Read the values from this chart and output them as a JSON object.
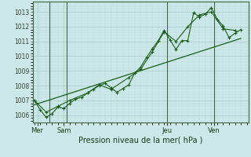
{
  "bg_color": "#cce8e8",
  "grid_major_color": "#aacccc",
  "grid_minor_color": "#bbdddd",
  "line_color": "#1a5e1a",
  "marker_color": "#1a5e1a",
  "title": "Pression niveau de la mer( hPa )",
  "ylim": [
    1005.5,
    1013.7
  ],
  "xlim": [
    -0.3,
    36.3
  ],
  "yticks": [
    1006,
    1007,
    1008,
    1009,
    1010,
    1011,
    1012,
    1013
  ],
  "day_labels": [
    "Mer",
    "Sam",
    "Jeu",
    "Ven"
  ],
  "day_positions": [
    0.5,
    5.0,
    22.5,
    30.5
  ],
  "vline_positions": [
    2.5,
    5.5,
    22.5,
    30.5
  ],
  "series1_x": [
    0,
    1,
    2,
    3,
    4,
    5,
    6,
    7,
    8,
    9,
    10,
    11,
    12,
    13,
    14,
    15,
    16,
    17,
    18,
    19,
    20,
    21,
    22,
    23,
    24,
    25,
    26,
    27,
    28,
    29,
    30,
    31,
    32,
    33,
    34,
    35
  ],
  "series1_y": [
    1007.0,
    1006.35,
    1005.85,
    1006.1,
    1006.55,
    1006.45,
    1006.8,
    1007.1,
    1007.2,
    1007.5,
    1007.75,
    1008.0,
    1008.15,
    1007.85,
    1007.55,
    1007.8,
    1008.05,
    1008.85,
    1009.25,
    1009.9,
    1010.5,
    1011.05,
    1011.75,
    1011.1,
    1010.45,
    1011.05,
    1011.05,
    1012.95,
    1012.65,
    1012.85,
    1013.3,
    1012.5,
    1012.05,
    1011.25,
    1011.55,
    1011.8
  ],
  "series2_x": [
    0,
    2,
    4,
    6,
    9,
    11,
    13,
    16,
    18,
    20,
    22,
    24,
    26,
    28,
    30,
    32,
    34
  ],
  "series2_y": [
    1007.0,
    1006.2,
    1006.6,
    1007.0,
    1007.5,
    1008.05,
    1007.75,
    1008.55,
    1009.1,
    1010.3,
    1011.65,
    1011.0,
    1012.0,
    1012.8,
    1013.0,
    1011.85,
    1011.75
  ],
  "trend_x": [
    0,
    35
  ],
  "trend_y": [
    1006.7,
    1011.2
  ]
}
